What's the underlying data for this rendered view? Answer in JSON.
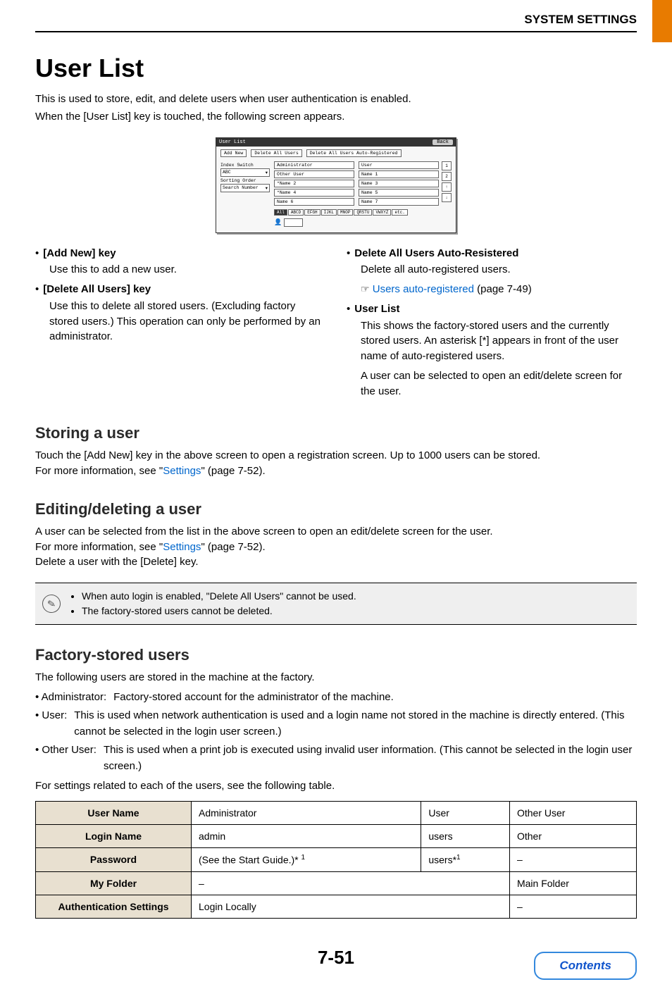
{
  "header": {
    "title": "SYSTEM SETTINGS"
  },
  "h1": "User List",
  "intro": {
    "l1": "This is used to store, edit, and delete users when user authentication is enabled.",
    "l2": "When the [User List] key is touched, the following screen appears."
  },
  "ui": {
    "title": "User List",
    "back": "Back",
    "add_new": "Add New",
    "delete_all": "Delete All Users",
    "delete_auto": "Delete All Users Auto-Registered",
    "index_switch_label": "Index Switch",
    "index_switch_value": "ABC",
    "sorting_label": "Sorting Order",
    "sorting_value": "Search Number",
    "cells": [
      "Administrator",
      "User",
      "Other User",
      "Name 1",
      "*Name 2",
      "Name 3",
      "*Name 4",
      "Name 5",
      "Name 6",
      "Name 7"
    ],
    "side": [
      "1",
      "2",
      "↑",
      "↓"
    ],
    "tabs": [
      "All",
      "ABCD",
      "EFGH",
      "IJKL",
      "MNOP",
      "QRSTU",
      "VWXYZ",
      "etc."
    ]
  },
  "keys": {
    "add_new_t": "[Add New] key",
    "add_new_d": "Use this to add a new user.",
    "del_all_t": "[Delete All Users] key",
    "del_all_d": "Use this to delete all stored users. (Excluding factory stored users.) This operation can only be performed by an administrator.",
    "del_auto_t": "Delete All Users Auto-Resistered",
    "del_auto_d": "Delete all auto-registered users.",
    "del_auto_link": "Users auto-registered",
    "del_auto_ref": " (page 7-49)",
    "list_t": "User List",
    "list_d1": "This shows the factory-stored users and the currently stored users. An asterisk [*] appears in front of the user name of auto-registered users.",
    "list_d2": "A user can be selected to open an edit/delete screen for the user."
  },
  "storing": {
    "h": "Storing a user",
    "p1": "Touch the [Add New] key in the above screen to open a registration screen. Up to 1000 users can be stored.",
    "p2a": "For more information, see \"",
    "p2link": "Settings",
    "p2b": "\" (page 7-52)."
  },
  "editing": {
    "h": "Editing/deleting a user",
    "p1": "A user can be selected from the list in the above screen to open an edit/delete screen for the user.",
    "p2a": "For more information, see \"",
    "p2link": "Settings",
    "p2b": "\" (page 7-52).",
    "p3": "Delete a user with the [Delete] key."
  },
  "note": {
    "n1": "When auto login is enabled, \"Delete All Users\" cannot be used.",
    "n2": "The factory-stored users cannot be deleted."
  },
  "factory": {
    "h": "Factory-stored users",
    "intro": "The following users are stored in the machine at the factory.",
    "admin_l": "• Administrator:",
    "admin_d": "Factory-stored account for the administrator of the machine.",
    "user_l": "• User:",
    "user_d": "This is used when network authentication is used and a login name not stored in the machine is directly entered. (This cannot be selected in the login user screen.)",
    "other_l": "• Other User:",
    "other_d": "This is used when a print job is executed using invalid user information. (This cannot be selected in the login user screen.)",
    "outro": "For settings related to each of the users, see the following table."
  },
  "table": {
    "rows": {
      "r1": "User Name",
      "r2": "Login Name",
      "r3": "Password",
      "r4": "My Folder",
      "r5": "Authentication Settings"
    },
    "c1": {
      "r1": "Administrator",
      "r2": "admin",
      "r3": "(See the Start Guide.)* ",
      "r4": "–",
      "r5": "Login Locally"
    },
    "c2": {
      "r1": "User",
      "r2": "users",
      "r3": "users*"
    },
    "c3": {
      "r1": "Other User",
      "r2": "Other",
      "r3": "–",
      "r4": "Main Folder",
      "r5": "–"
    }
  },
  "page_num": "7-51",
  "contents": "Contents"
}
